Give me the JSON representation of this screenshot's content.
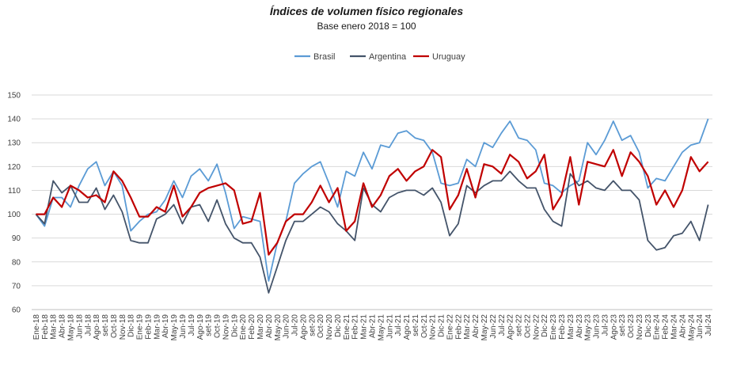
{
  "chart_data": {
    "type": "line",
    "title": "Índices de volumen físico regionales",
    "subtitle": "Base enero 2018 = 100",
    "xlabel": "",
    "ylabel": "",
    "ylim": [
      60,
      150
    ],
    "yticks": [
      60,
      70,
      80,
      90,
      100,
      110,
      120,
      130,
      140,
      150
    ],
    "grid": true,
    "legend_position": "top",
    "categories": [
      "Ene-18",
      "Feb-18",
      "Mar-18",
      "Abr-18",
      "May-18",
      "Jun-18",
      "Jul-18",
      "Ago-18",
      "set-18",
      "Oct-18",
      "Nov-18",
      "Dic-18",
      "Ene-19",
      "Feb-19",
      "Mar-19",
      "Abr-19",
      "May-19",
      "Jun-19",
      "Jul-19",
      "Ago-19",
      "set-19",
      "Oct-19",
      "Nov-19",
      "Dic-19",
      "Ene-20",
      "Feb-20",
      "Mar-20",
      "Abr-20",
      "May-20",
      "Jun-20",
      "Jul-20",
      "Ago-20",
      "set-20",
      "Oct-20",
      "Nov-20",
      "Dic-20",
      "Ene-21",
      "Feb-21",
      "Mar-21",
      "Abr-21",
      "May-21",
      "Jun-21",
      "Jul-21",
      "Ago-21",
      "set-21",
      "Oct-21",
      "Nov-21",
      "Dic-21",
      "Ene-22",
      "Feb-22",
      "Mar-22",
      "Abr-22",
      "May-22",
      "Jun-22",
      "Jul-22",
      "Ago-22",
      "set-22",
      "Oct-22",
      "Nov-22",
      "Dic-22",
      "Ene-23",
      "Feb-23",
      "Mar-23",
      "Abr-23",
      "May-23",
      "Jun-23",
      "Jul-23",
      "Ago-23",
      "set-23",
      "Oct-23",
      "Nov-23",
      "Dic-23",
      "Ene-24",
      "Feb-24",
      "Mar-24",
      "Abr-24",
      "May-24",
      "Jun-24",
      "Jul-24"
    ],
    "series": [
      {
        "name": "Brasil",
        "color": "#5b9bd5",
        "values": [
          100,
          95,
          107,
          107,
          103,
          112,
          119,
          122,
          112,
          118,
          112,
          93,
          97,
          100,
          101,
          106,
          114,
          107,
          116,
          119,
          114,
          121,
          109,
          94,
          99,
          98,
          97,
          72,
          88,
          97,
          113,
          117,
          120,
          122,
          113,
          103,
          118,
          116,
          126,
          119,
          129,
          128,
          134,
          135,
          132,
          131,
          126,
          113,
          112,
          113,
          123,
          120,
          130,
          128,
          134,
          139,
          132,
          131,
          127,
          113,
          112,
          109,
          112,
          114,
          130,
          125,
          131,
          139,
          131,
          133,
          126,
          111,
          115,
          114,
          120,
          126,
          129,
          130,
          140
        ]
      },
      {
        "name": "Argentina",
        "color": "#44546a",
        "values": [
          100,
          96,
          114,
          109,
          112,
          105,
          105,
          111,
          102,
          108,
          101,
          89,
          88,
          88,
          98,
          100,
          104,
          96,
          103,
          104,
          97,
          106,
          96,
          90,
          88,
          88,
          82,
          67,
          78,
          89,
          97,
          97,
          100,
          103,
          101,
          96,
          93,
          89,
          111,
          104,
          101,
          107,
          109,
          110,
          110,
          108,
          111,
          105,
          91,
          96,
          112,
          109,
          112,
          114,
          114,
          118,
          114,
          111,
          111,
          102,
          97,
          95,
          117,
          112,
          114,
          111,
          110,
          114,
          110,
          110,
          106,
          89,
          85,
          86,
          91,
          92,
          97,
          89,
          104
        ]
      },
      {
        "name": "Uruguay",
        "color": "#c00000",
        "values": [
          100,
          100,
          107,
          103,
          112,
          110,
          107,
          108,
          105,
          118,
          114,
          107,
          99,
          99,
          103,
          101,
          112,
          99,
          103,
          109,
          111,
          112,
          113,
          110,
          96,
          97,
          109,
          83,
          88,
          97,
          100,
          100,
          105,
          112,
          105,
          111,
          93,
          97,
          113,
          103,
          108,
          116,
          119,
          114,
          118,
          120,
          127,
          124,
          102,
          108,
          119,
          107,
          121,
          120,
          117,
          125,
          122,
          115,
          118,
          125,
          102,
          108,
          124,
          104,
          122,
          121,
          120,
          127,
          116,
          126,
          122,
          116,
          104,
          110,
          103,
          110,
          124,
          118,
          122
        ]
      }
    ]
  }
}
